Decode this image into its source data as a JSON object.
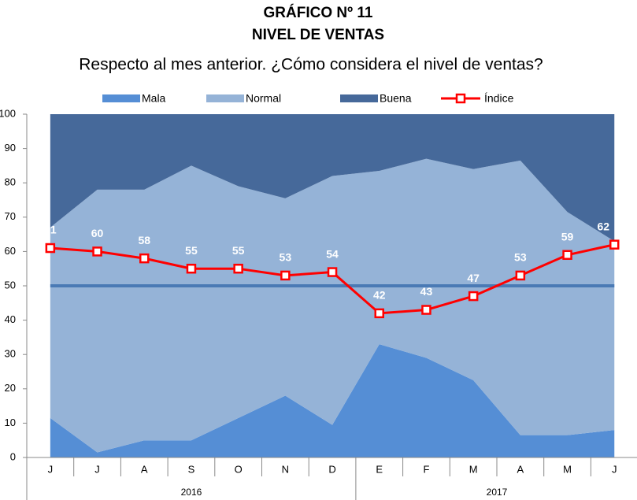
{
  "chart_data": {
    "type": "area",
    "title": "GRÁFICO Nº 11",
    "subtitle": "NIVEL DE VENTAS",
    "question": "Respecto al mes anterior. ¿Cómo considera el nivel de ventas?",
    "categories": [
      "J",
      "J",
      "A",
      "S",
      "O",
      "N",
      "D",
      "E",
      "F",
      "M",
      "A",
      "M",
      "J"
    ],
    "year_groups": [
      {
        "label": "2016",
        "count": 7
      },
      {
        "label": "2017",
        "count": 6
      }
    ],
    "series": [
      {
        "name": "Mala",
        "color": "#558ed5",
        "stacked": true,
        "values": [
          11.5,
          1.5,
          5,
          5,
          11.5,
          18,
          9.5,
          33,
          29,
          22.5,
          6.5,
          6.5,
          8
        ]
      },
      {
        "name": "Normal",
        "color": "#95b3d7",
        "stacked": true,
        "values": [
          55.5,
          76.5,
          73,
          80,
          67.5,
          57.5,
          72.5,
          50.5,
          58,
          61.5,
          80,
          65,
          55
        ]
      },
      {
        "name": "Buena",
        "color": "#46699a",
        "stacked": true,
        "values": [
          33,
          22,
          22,
          15,
          21,
          24.5,
          18,
          16.5,
          13,
          16,
          13.5,
          28.5,
          37
        ]
      },
      {
        "name": "Índice",
        "color": "#ff0000",
        "type": "line",
        "values": [
          61,
          60,
          58,
          55,
          55,
          53,
          54,
          42,
          43,
          47,
          53,
          59,
          62
        ]
      }
    ],
    "reference_line": {
      "value": 50,
      "color": "#4a7ab5"
    },
    "ylim": [
      0,
      100
    ],
    "yticks": [
      0,
      10,
      20,
      30,
      40,
      50,
      60,
      70,
      80,
      90,
      100
    ]
  }
}
